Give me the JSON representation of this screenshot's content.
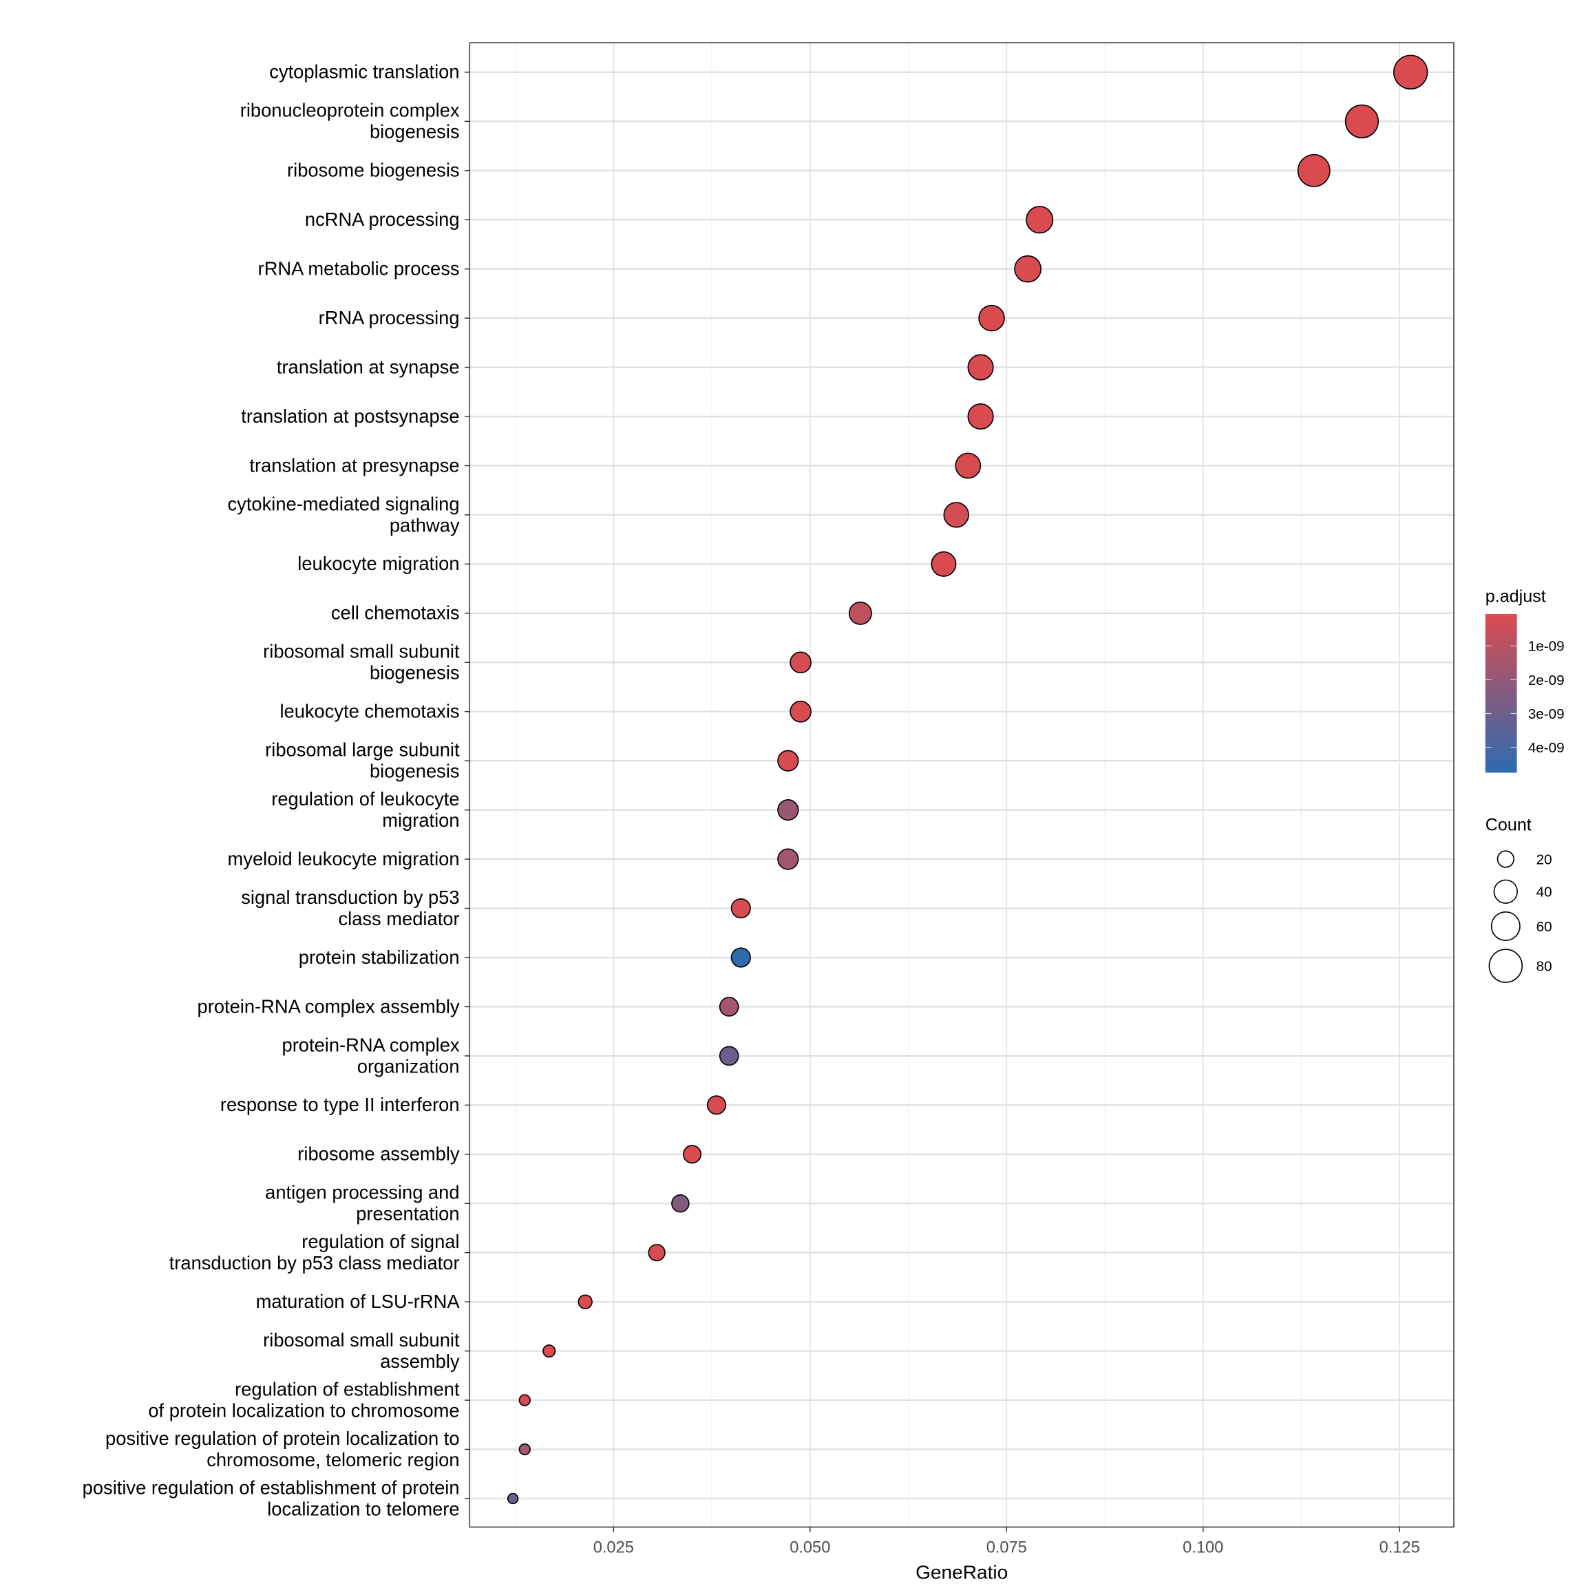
{
  "chart_data": {
    "type": "scatter",
    "title": "",
    "xlabel": "GeneRatio",
    "ylabel": "",
    "xlim": [
      0.0067,
      0.1319
    ],
    "x_ticks": [
      "0.025",
      "0.050",
      "0.075",
      "0.100",
      "0.125"
    ],
    "x_tick_values": [
      0.025,
      0.05,
      0.075,
      0.1,
      0.125
    ],
    "grid": true,
    "legend_position": "right",
    "categories": [
      [
        "cytoplasmic translation"
      ],
      [
        "ribonucleoprotein complex",
        "biogenesis"
      ],
      [
        "ribosome biogenesis"
      ],
      [
        "ncRNA processing"
      ],
      [
        "rRNA metabolic process"
      ],
      [
        "rRNA processing"
      ],
      [
        "translation at synapse"
      ],
      [
        "translation at postsynapse"
      ],
      [
        "translation at presynapse"
      ],
      [
        "cytokine-mediated signaling",
        "pathway"
      ],
      [
        "leukocyte migration"
      ],
      [
        "cell chemotaxis"
      ],
      [
        "ribosomal small subunit",
        "biogenesis"
      ],
      [
        "leukocyte chemotaxis"
      ],
      [
        "ribosomal large subunit",
        "biogenesis"
      ],
      [
        "regulation of leukocyte",
        "migration"
      ],
      [
        "myeloid leukocyte migration"
      ],
      [
        "signal transduction by p53",
        "class mediator"
      ],
      [
        "protein stabilization"
      ],
      [
        "protein-RNA complex assembly"
      ],
      [
        "protein-RNA complex",
        "organization"
      ],
      [
        "response to type II interferon"
      ],
      [
        "ribosome assembly"
      ],
      [
        "antigen processing and",
        "presentation"
      ],
      [
        "regulation of signal",
        "transduction by p53 class",
        "mediator"
      ],
      [
        "maturation of LSU-rRNA"
      ],
      [
        "ribosomal small subunit",
        "assembly"
      ],
      [
        "regulation of establishment",
        "of protein localization to",
        "chromosome"
      ],
      [
        "positive regulation of",
        "protein localization to",
        "chromosome, telomeric region"
      ],
      [
        "positive regulation of",
        "establishment of protein",
        "localization to telomere"
      ]
    ],
    "gene_ratio": [
      0.1264,
      0.1202,
      0.1141,
      0.0792,
      0.0777,
      0.0731,
      0.0717,
      0.0717,
      0.0701,
      0.0686,
      0.067,
      0.0564,
      0.0488,
      0.0488,
      0.0472,
      0.0472,
      0.0472,
      0.0412,
      0.0412,
      0.0397,
      0.0397,
      0.0381,
      0.035,
      0.0335,
      0.0305,
      0.0214,
      0.0168,
      0.0137,
      0.0137,
      0.0122
    ],
    "count": [
      83,
      79,
      75,
      52,
      51,
      48,
      47,
      47,
      46,
      45,
      44,
      37,
      32,
      32,
      31,
      31,
      31,
      27,
      27,
      26,
      26,
      25,
      23,
      22,
      20,
      14,
      11,
      9,
      9,
      8
    ],
    "p_adjust": [
      1e-10,
      1e-10,
      1e-10,
      1e-10,
      1e-10,
      1e-10,
      1e-10,
      1e-10,
      1e-10,
      3e-10,
      1e-10,
      8e-10,
      2e-10,
      1e-10,
      2e-10,
      1.8e-09,
      1.6e-09,
      2e-10,
      4.7e-09,
      1.5e-09,
      3e-09,
      2e-10,
      1e-10,
      2.5e-09,
      2e-10,
      1e-10,
      1e-10,
      1e-10,
      1.5e-09,
      3e-09
    ],
    "color_legend": {
      "title": "p.adjust",
      "ticks": [
        "1e-09",
        "2e-09",
        "3e-09",
        "4e-09"
      ],
      "tick_values": [
        1e-09,
        2e-09,
        3e-09,
        4e-09
      ],
      "range": [
        6e-11,
        4.75e-09
      ],
      "low_color": "#DB4B4F",
      "high_color": "#2C6BB0"
    },
    "size_legend": {
      "title": "Count",
      "values": [
        20,
        40,
        60,
        80
      ],
      "labels": [
        "20",
        "40",
        "60",
        "80"
      ]
    }
  }
}
